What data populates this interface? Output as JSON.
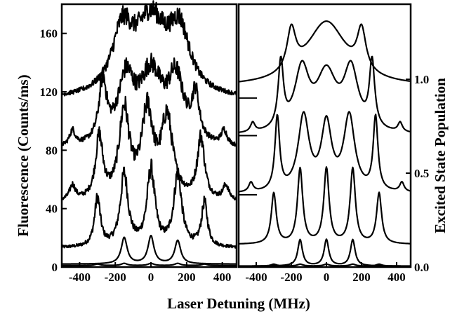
{
  "chart_data": [
    {
      "type": "line",
      "panel": "left",
      "xlabel": "Laser Detuning (MHz)",
      "ylabel": "Fluorescence (Counts/ms)",
      "xlim": [
        -500,
        480
      ],
      "ylim": [
        0,
        180
      ],
      "x_ticks": [
        -400,
        -200,
        0,
        200,
        400
      ],
      "y_ticks": [
        0,
        40,
        80,
        120,
        160
      ],
      "x_tick_labels": [
        "-400",
        "-200",
        "0",
        "200",
        "400"
      ],
      "y_tick_labels": [
        "0",
        "40",
        "80",
        "120",
        "160"
      ],
      "noisy": true,
      "series": [
        {
          "baseline": 1,
          "peaks": [
            [
              -300,
              1,
              20
            ],
            [
              -150,
              1.5,
              20
            ],
            [
              0,
              1.5,
              20
            ],
            [
              150,
              1.5,
              20
            ],
            [
              300,
              1,
              20
            ]
          ]
        },
        {
          "baseline": 2,
          "peaks": [
            [
              -150,
              18,
              20
            ],
            [
              0,
              19,
              20
            ],
            [
              150,
              16,
              20
            ]
          ]
        },
        {
          "baseline": 13,
          "peaks": [
            [
              -300,
              33,
              20
            ],
            [
              -150,
              49,
              27
            ],
            [
              0,
              52,
              27
            ],
            [
              150,
              49,
              27
            ],
            [
              300,
              30,
              20
            ]
          ]
        },
        {
          "baseline": 44,
          "peaks": [
            [
              -440,
              10,
              20
            ],
            [
              -290,
              42,
              25
            ],
            [
              -150,
              60,
              35
            ],
            [
              -20,
              58,
              40
            ],
            [
              90,
              54,
              40
            ],
            [
              280,
              42,
              25
            ],
            [
              420,
              10,
              20
            ]
          ]
        },
        {
          "baseline": 80,
          "peaks": [
            [
              -440,
              10,
              20
            ],
            [
              -270,
              40,
              26
            ],
            [
              -140,
              42,
              55
            ],
            [
              0,
              48,
              80
            ],
            [
              140,
              42,
              55
            ],
            [
              250,
              30,
              25
            ],
            [
              410,
              10,
              20
            ]
          ]
        },
        {
          "baseline": 114,
          "peaks": [
            [
              -160,
              40,
              70
            ],
            [
              0,
              50,
              110
            ],
            [
              160,
              40,
              70
            ]
          ]
        }
      ]
    },
    {
      "type": "line",
      "panel": "right",
      "xlabel": "Laser Detuning (MHz)",
      "ylabel": "Excited State Population",
      "xlim": [
        -500,
        480
      ],
      "ylim": [
        0,
        1.4
      ],
      "x_ticks": [
        -400,
        -200,
        0,
        200,
        400
      ],
      "y_ticks": [
        0.0,
        0.5,
        1.0
      ],
      "x_tick_labels": [
        "-400",
        "-200",
        "0",
        "200",
        "400"
      ],
      "y_tick_labels": [
        "0.0",
        "0.5",
        "1.0"
      ],
      "noisy": false,
      "series": [
        {
          "baseline": 0.005,
          "peaks": [
            [
              -300,
              0.01,
              20
            ],
            [
              -150,
              0.01,
              20
            ],
            [
              0,
              0.01,
              20
            ],
            [
              150,
              0.01,
              20
            ],
            [
              300,
              0.01,
              20
            ]
          ]
        },
        {
          "baseline": 0.005,
          "peaks": [
            [
              -150,
              0.14,
              16
            ],
            [
              0,
              0.14,
              16
            ],
            [
              150,
              0.14,
              16
            ]
          ]
        },
        {
          "baseline": 0.12,
          "peaks": [
            [
              -300,
              0.27,
              17
            ],
            [
              -150,
              0.4,
              18
            ],
            [
              0,
              0.4,
              18
            ],
            [
              150,
              0.4,
              18
            ],
            [
              300,
              0.27,
              17
            ]
          ]
        },
        {
          "baseline": 0.39,
          "peaks": [
            [
              -430,
              0.05,
              15
            ],
            [
              -280,
              0.39,
              16
            ],
            [
              -130,
              0.4,
              38
            ],
            [
              0,
              0.35,
              35
            ],
            [
              130,
              0.4,
              38
            ],
            [
              280,
              0.39,
              16
            ],
            [
              430,
              0.05,
              15
            ]
          ]
        },
        {
          "baseline": 0.7,
          "peaks": [
            [
              -420,
              0.05,
              15
            ],
            [
              -260,
              0.35,
              18
            ],
            [
              -140,
              0.32,
              50
            ],
            [
              0,
              0.3,
              70
            ],
            [
              140,
              0.32,
              50
            ],
            [
              260,
              0.35,
              18
            ],
            [
              420,
              0.05,
              15
            ]
          ]
        },
        {
          "baseline": 0.96,
          "peaks": [
            [
              -200,
              0.22,
              30
            ],
            [
              0,
              0.34,
              140
            ],
            [
              200,
              0.22,
              30
            ]
          ]
        }
      ],
      "markers": [
        0.385,
        0.7,
        0.9
      ]
    }
  ]
}
